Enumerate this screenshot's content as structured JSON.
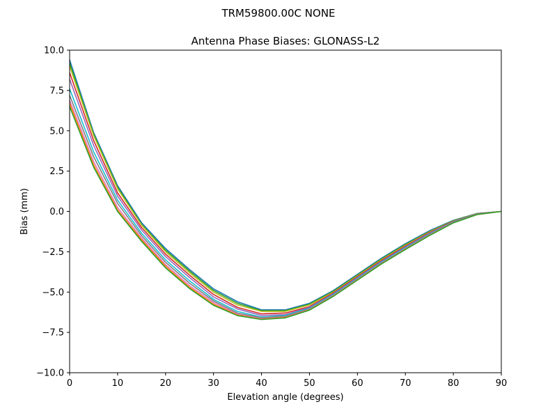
{
  "figure": {
    "suptitle": "TRM59800.00C    NONE"
  },
  "chart_data": {
    "type": "line",
    "title": "Antenna Phase Biases: GLONASS-L2",
    "xlabel": "Elevation angle (degrees)",
    "ylabel": "Bias (mm)",
    "xlim": [
      0,
      90
    ],
    "ylim": [
      -10,
      10
    ],
    "x_ticks": [
      "0",
      "10",
      "20",
      "30",
      "40",
      "50",
      "60",
      "70",
      "80",
      "90"
    ],
    "y_ticks": [
      "−10.0",
      "−7.5",
      "−5.0",
      "−2.5",
      "0.0",
      "2.5",
      "5.0",
      "7.5",
      "10.0"
    ],
    "grid": false,
    "legend": "none",
    "x": [
      0,
      5,
      10,
      15,
      20,
      25,
      30,
      35,
      40,
      45,
      50,
      55,
      60,
      65,
      70,
      75,
      80,
      85,
      90
    ],
    "series": [
      {
        "color": "#1f77b4",
        "values": [
          9.4,
          4.9,
          1.6,
          -0.7,
          -2.3,
          -3.6,
          -4.8,
          -5.6,
          -6.1,
          -6.1,
          -5.7,
          -4.9,
          -3.9,
          -2.9,
          -2.0,
          -1.2,
          -0.55,
          -0.12,
          0.0
        ]
      },
      {
        "color": "#2ca02c",
        "values": [
          9.2,
          4.8,
          1.5,
          -0.8,
          -2.4,
          -3.7,
          -4.9,
          -5.7,
          -6.15,
          -6.15,
          -5.75,
          -4.95,
          -3.95,
          -2.95,
          -2.05,
          -1.25,
          -0.58,
          -0.13,
          0.0
        ]
      },
      {
        "color": "#bcbd22",
        "values": [
          9.0,
          4.7,
          1.4,
          -0.85,
          -2.5,
          -3.8,
          -5.0,
          -5.8,
          -6.2,
          -6.2,
          -5.8,
          -5.0,
          -4.0,
          -3.0,
          -2.1,
          -1.28,
          -0.6,
          -0.14,
          0.0
        ]
      },
      {
        "color": "#d62728",
        "values": [
          8.6,
          4.4,
          1.15,
          -1.0,
          -2.65,
          -3.95,
          -5.15,
          -5.95,
          -6.35,
          -6.3,
          -5.9,
          -5.05,
          -4.05,
          -3.05,
          -2.15,
          -1.32,
          -0.62,
          -0.15,
          0.0
        ]
      },
      {
        "color": "#9467bd",
        "values": [
          8.2,
          4.1,
          0.95,
          -1.15,
          -2.8,
          -4.1,
          -5.3,
          -6.05,
          -6.45,
          -6.4,
          -5.95,
          -5.1,
          -4.1,
          -3.1,
          -2.2,
          -1.36,
          -0.64,
          -0.16,
          0.0
        ]
      },
      {
        "color": "#17becf",
        "values": [
          7.6,
          3.7,
          0.7,
          -1.35,
          -3.0,
          -4.3,
          -5.45,
          -6.2,
          -6.55,
          -6.45,
          -6.0,
          -5.15,
          -4.15,
          -3.15,
          -2.25,
          -1.4,
          -0.66,
          -0.17,
          0.0
        ]
      },
      {
        "color": "#7f7f7f",
        "values": [
          7.2,
          3.4,
          0.5,
          -1.5,
          -3.15,
          -4.45,
          -5.55,
          -6.3,
          -6.6,
          -6.5,
          -6.05,
          -5.2,
          -4.2,
          -3.2,
          -2.3,
          -1.44,
          -0.68,
          -0.18,
          0.0
        ]
      },
      {
        "color": "#e377c2",
        "values": [
          6.9,
          3.1,
          0.25,
          -1.65,
          -3.3,
          -4.6,
          -5.65,
          -6.38,
          -6.65,
          -6.55,
          -6.08,
          -5.22,
          -4.22,
          -3.22,
          -2.32,
          -1.46,
          -0.69,
          -0.18,
          0.0
        ]
      },
      {
        "color": "#ff7f0e",
        "values": [
          6.7,
          2.9,
          0.1,
          -1.75,
          -3.4,
          -4.7,
          -5.75,
          -6.42,
          -6.68,
          -6.57,
          -6.1,
          -5.24,
          -4.24,
          -3.24,
          -2.34,
          -1.48,
          -0.7,
          -0.19,
          0.0
        ]
      },
      {
        "color": "#2ca02c",
        "values": [
          6.5,
          2.75,
          0.0,
          -1.85,
          -3.5,
          -4.78,
          -5.82,
          -6.46,
          -6.7,
          -6.6,
          -6.12,
          -5.26,
          -4.26,
          -3.26,
          -2.36,
          -1.5,
          -0.71,
          -0.19,
          0.0
        ]
      }
    ]
  }
}
